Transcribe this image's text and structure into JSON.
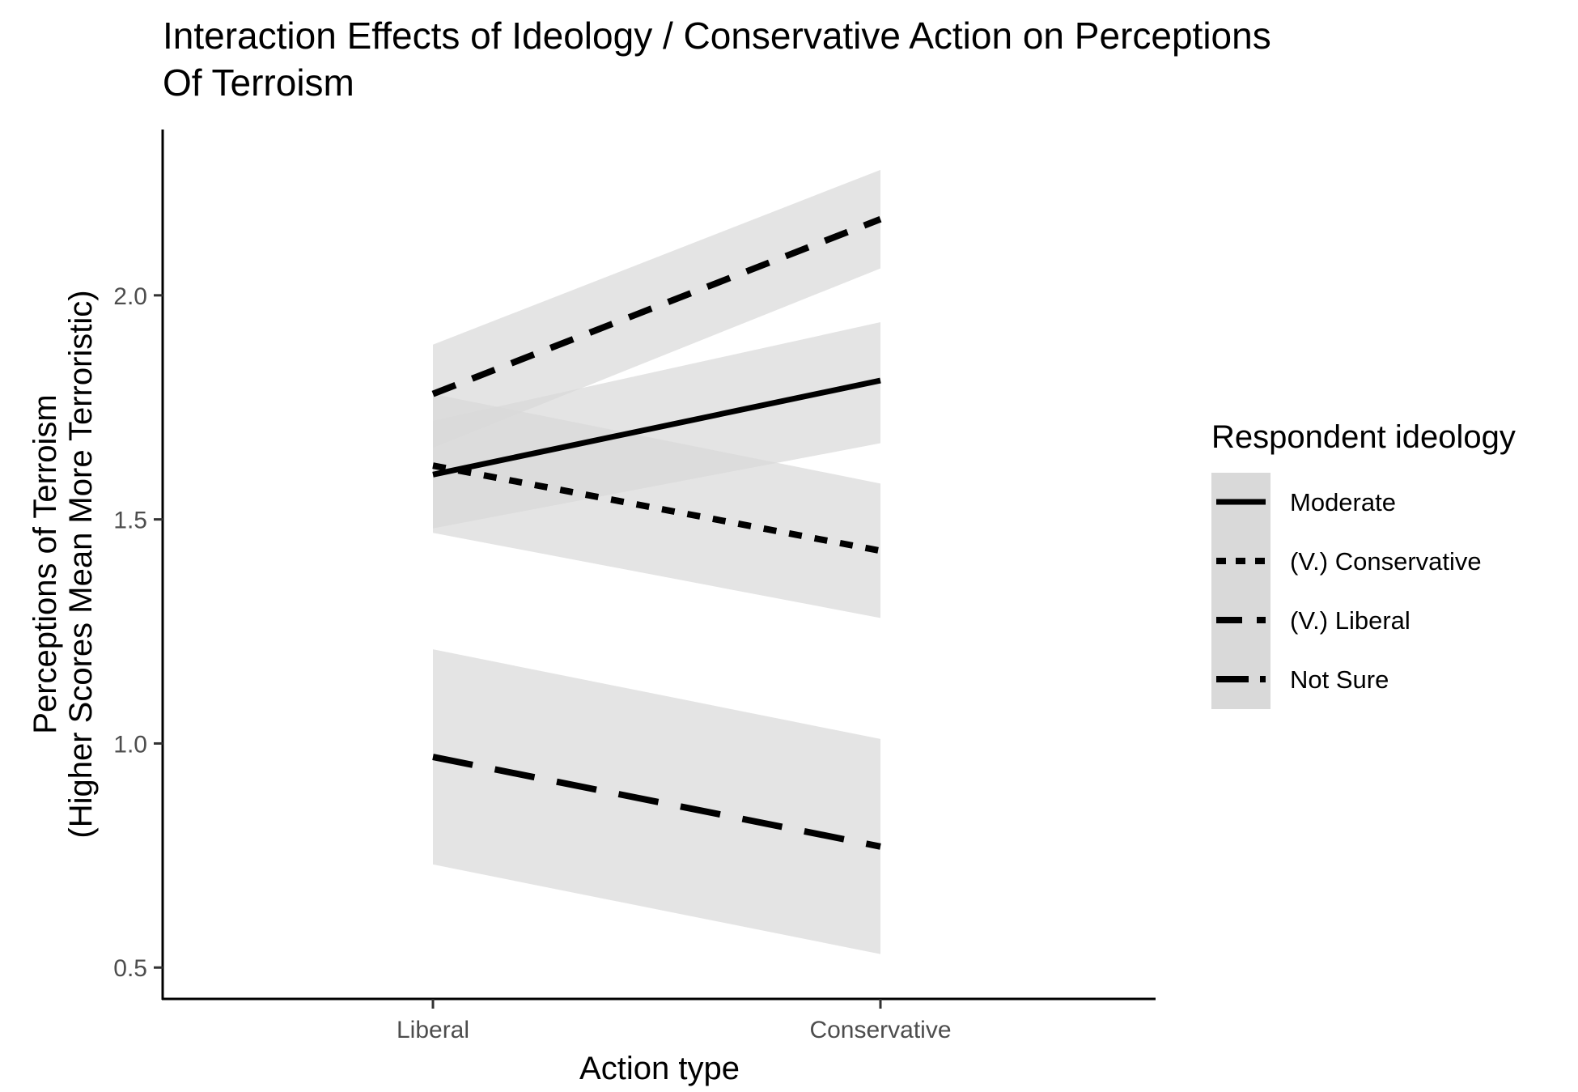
{
  "chart_data": {
    "type": "line",
    "title": "Interaction Effects of Ideology / Conservative Action on Perceptions Of Terroism",
    "title_lines": [
      "Interaction Effects of Ideology / Conservative Action on Perceptions",
      "Of Terroism"
    ],
    "xlabel": "Action type",
    "ylabel_lines": [
      "Perceptions of Terroism",
      "(Higher Scores Mean More Terroristic)"
    ],
    "categories": [
      "Liberal",
      "Conservative"
    ],
    "ylim": [
      0.43,
      2.37
    ],
    "yticks": [
      0.5,
      1.0,
      1.5,
      2.0
    ],
    "ytick_labels": [
      "0.5",
      "1.0",
      "1.5",
      "2.0"
    ],
    "grid": false,
    "legend": {
      "title": "Respondent ideology",
      "position": "right"
    },
    "band_color": "#d9d9d9",
    "line_color": "#000000",
    "series": [
      {
        "name": "Moderate",
        "dash": "solid",
        "values": [
          1.6,
          1.81
        ],
        "lower": [
          1.48,
          1.67
        ],
        "upper": [
          1.72,
          1.94
        ]
      },
      {
        "name": "(V.) Conservative",
        "dash": "dotted",
        "values": [
          1.62,
          1.43
        ],
        "lower": [
          1.47,
          1.28
        ],
        "upper": [
          1.78,
          1.58
        ]
      },
      {
        "name": "(V.) Liberal",
        "dash": "dashed",
        "values": [
          1.78,
          2.17
        ],
        "lower": [
          1.66,
          2.06
        ],
        "upper": [
          1.89,
          2.28
        ]
      },
      {
        "name": "Not Sure",
        "dash": "longdash",
        "values": [
          0.97,
          0.77
        ],
        "lower": [
          0.73,
          0.53
        ],
        "upper": [
          1.21,
          1.01
        ]
      }
    ]
  }
}
